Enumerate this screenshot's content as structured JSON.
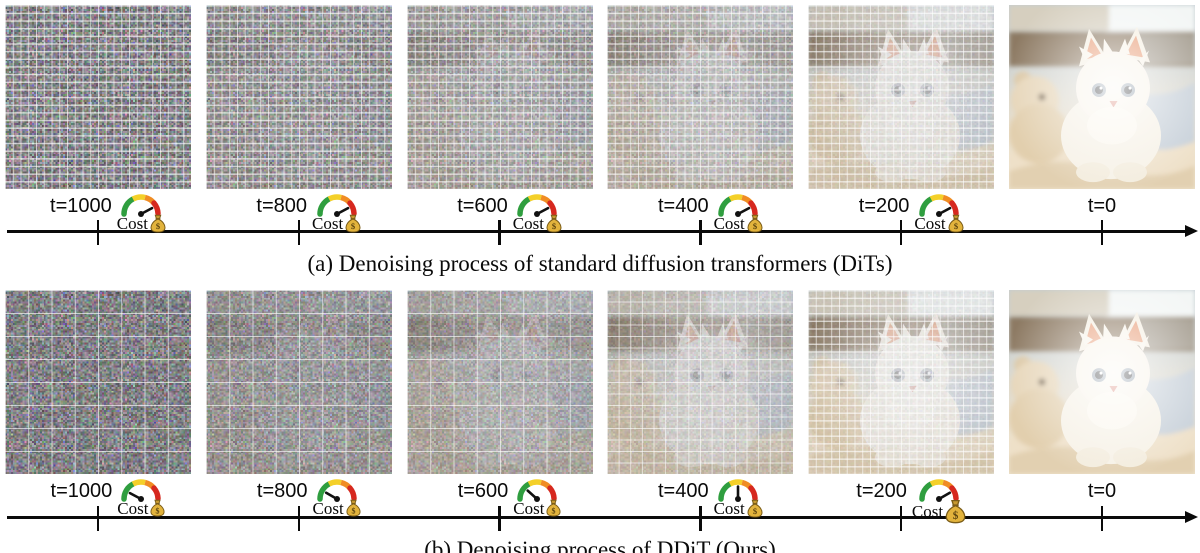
{
  "figure": {
    "rows": [
      {
        "id": "dit",
        "caption": "(a) Denoising process of standard diffusion transformers (DiTs)",
        "steps": [
          {
            "label": "t=1000",
            "token_grid": 24,
            "noise": 1.0,
            "veil": 0.0,
            "show_image": false,
            "gauge": {
              "show": true,
              "level": "high",
              "needle_deg": -28
            },
            "cost_label": "Cost",
            "bag_scale": 1
          },
          {
            "label": "t=800",
            "token_grid": 24,
            "noise": 0.8,
            "veil": 0.3,
            "show_image": true,
            "gauge": {
              "show": true,
              "level": "high",
              "needle_deg": -28
            },
            "cost_label": "Cost",
            "bag_scale": 1
          },
          {
            "label": "t=600",
            "token_grid": 24,
            "noise": 0.6,
            "veil": 0.28,
            "show_image": true,
            "gauge": {
              "show": true,
              "level": "high",
              "needle_deg": -28
            },
            "cost_label": "Cost",
            "bag_scale": 1
          },
          {
            "label": "t=400",
            "token_grid": 24,
            "noise": 0.42,
            "veil": 0.22,
            "show_image": true,
            "gauge": {
              "show": true,
              "level": "high",
              "needle_deg": -28
            },
            "cost_label": "Cost",
            "bag_scale": 1
          },
          {
            "label": "t=200",
            "token_grid": 24,
            "noise": 0.16,
            "veil": 0.1,
            "show_image": true,
            "gauge": {
              "show": true,
              "level": "high",
              "needle_deg": -28
            },
            "cost_label": "Cost",
            "bag_scale": 1
          },
          {
            "label": "t=0",
            "token_grid": 0,
            "noise": 0.0,
            "veil": 0.0,
            "show_image": true,
            "gauge": {
              "show": false
            }
          }
        ]
      },
      {
        "id": "ddit",
        "caption": "(b) Denoising process of DDiT (Ours)",
        "steps": [
          {
            "label": "t=1000",
            "token_grid": 8,
            "noise": 1.0,
            "veil": 0.0,
            "show_image": false,
            "gauge": {
              "show": true,
              "level": "low",
              "needle_deg": -152
            },
            "cost_label": "Cost",
            "bag_scale": 0.95
          },
          {
            "label": "t=800",
            "token_grid": 8,
            "noise": 0.74,
            "veil": 0.3,
            "show_image": true,
            "gauge": {
              "show": true,
              "level": "low",
              "needle_deg": -150
            },
            "cost_label": "Cost",
            "bag_scale": 0.95
          },
          {
            "label": "t=600",
            "token_grid": 8,
            "noise": 0.55,
            "veil": 0.22,
            "show_image": true,
            "gauge": {
              "show": true,
              "level": "low-mid",
              "needle_deg": -138
            },
            "cost_label": "Cost",
            "bag_scale": 0.95
          },
          {
            "label": "t=400",
            "token_grid": 16,
            "noise": 0.3,
            "veil": 0.12,
            "show_image": true,
            "gauge": {
              "show": true,
              "level": "mid",
              "needle_deg": -90
            },
            "cost_label": "Cost",
            "bag_scale": 1
          },
          {
            "label": "t=200",
            "token_grid": 24,
            "noise": 0.12,
            "veil": 0.05,
            "show_image": true,
            "gauge": {
              "show": true,
              "level": "high",
              "needle_deg": -30
            },
            "cost_label": "Cost",
            "bag_scale": 1.3
          },
          {
            "label": "t=0",
            "token_grid": 0,
            "noise": 0.0,
            "veil": 0.0,
            "show_image": true,
            "gauge": {
              "show": false
            }
          }
        ]
      }
    ],
    "gauge_colors": {
      "green": "#2f9e3f",
      "yellow": "#f4d029",
      "orange": "#f08c23",
      "red": "#d6281f"
    },
    "money_bag": {
      "body": "#e2b33c",
      "neck": "#c89a30",
      "outline": "#7a5c18",
      "symbol": "$"
    }
  }
}
